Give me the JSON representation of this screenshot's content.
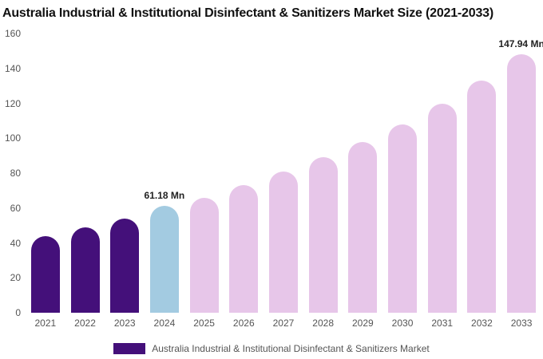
{
  "chart_data": {
    "type": "bar",
    "title": "Australia Industrial & Institutional Disinfectant & Sanitizers Market Size (2021-2033)",
    "categories": [
      "2021",
      "2022",
      "2023",
      "2024",
      "2025",
      "2026",
      "2027",
      "2028",
      "2029",
      "2030",
      "2031",
      "2032",
      "2033"
    ],
    "values": [
      44,
      49,
      54,
      61.18,
      66,
      73,
      81,
      89,
      98,
      108,
      120,
      133,
      147.94
    ],
    "unit": "Mn",
    "bar_labels": [
      "",
      "",
      "",
      "61.18 Mn",
      "",
      "",
      "",
      "",
      "",
      "",
      "",
      "",
      "147.94 Mn"
    ],
    "yticks": [
      0,
      20,
      40,
      60,
      80,
      100,
      120,
      140,
      160
    ],
    "ylim": [
      0,
      160
    ],
    "grid": false,
    "legend": "Australia Industrial & Institutional Disinfectant & Sanitizers Market",
    "legend_position": "bottom",
    "colors": {
      "historical": "#44107a",
      "current": "#a3cbe1",
      "forecast": "#e7c6e9"
    },
    "bar_color_roles": [
      "historical",
      "historical",
      "historical",
      "current",
      "forecast",
      "forecast",
      "forecast",
      "forecast",
      "forecast",
      "forecast",
      "forecast",
      "forecast",
      "forecast"
    ]
  }
}
